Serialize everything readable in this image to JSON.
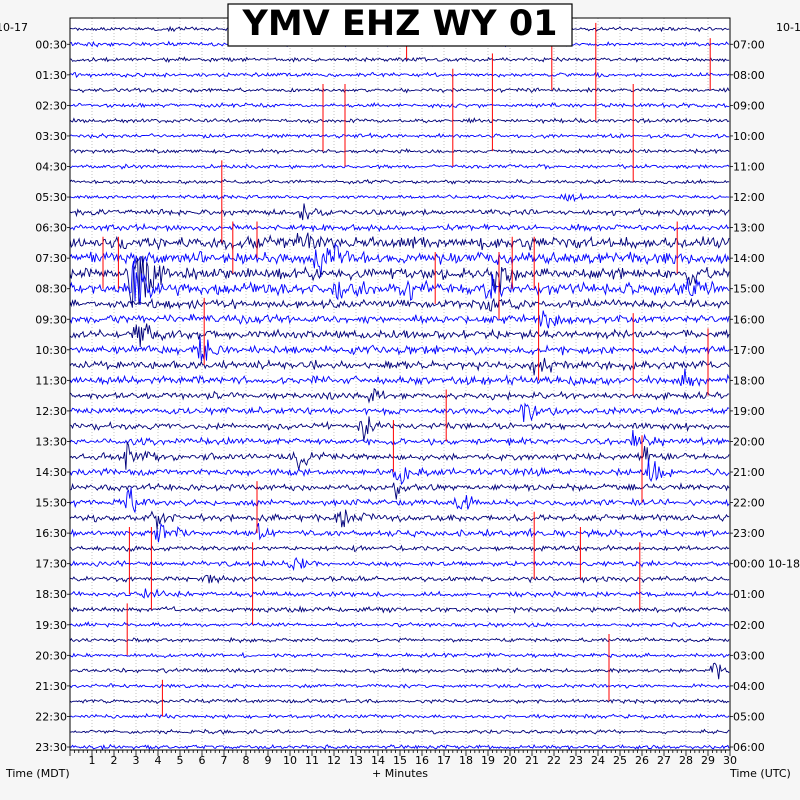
{
  "chart_data": {
    "type": "line",
    "title": "YMV EHZ WY 01",
    "left_date": "10-17",
    "right_date_top": "10-1",
    "right_date_mid": "10-18",
    "xlabel": "+ Minutes",
    "left_axis_label": "Time (MDT)",
    "right_axis_label": "Time (UTC)",
    "x_ticks": [
      "1",
      "2",
      "3",
      "4",
      "5",
      "6",
      "7",
      "8",
      "9",
      "10",
      "11",
      "12",
      "13",
      "14",
      "15",
      "16",
      "17",
      "18",
      "19",
      "20",
      "21",
      "22",
      "23",
      "24",
      "25",
      "26",
      "27",
      "28",
      "29",
      "30"
    ],
    "xlim": [
      0,
      30
    ],
    "left_time_labels": [
      "00:30",
      "01:30",
      "02:30",
      "03:30",
      "04:30",
      "05:30",
      "06:30",
      "07:30",
      "08:30",
      "09:30",
      "10:30",
      "11:30",
      "12:30",
      "13:30",
      "14:30",
      "15:30",
      "16:30",
      "17:30",
      "18:30",
      "19:30",
      "20:30",
      "21:30",
      "22:30",
      "23:30"
    ],
    "right_time_labels": [
      "07:00",
      "08:00",
      "09:00",
      "10:00",
      "11:00",
      "12:00",
      "13:00",
      "14:00",
      "15:00",
      "16:00",
      "17:00",
      "18:00",
      "19:00",
      "20:00",
      "21:00",
      "22:00",
      "23:00",
      "00:00",
      "01:00",
      "02:00",
      "03:00",
      "04:00",
      "05:00",
      "06:00"
    ],
    "trace_count": 48,
    "trace_colors": [
      "#00007a",
      "#0000ff"
    ],
    "pick_color": "#ff0000",
    "grid": true
  }
}
